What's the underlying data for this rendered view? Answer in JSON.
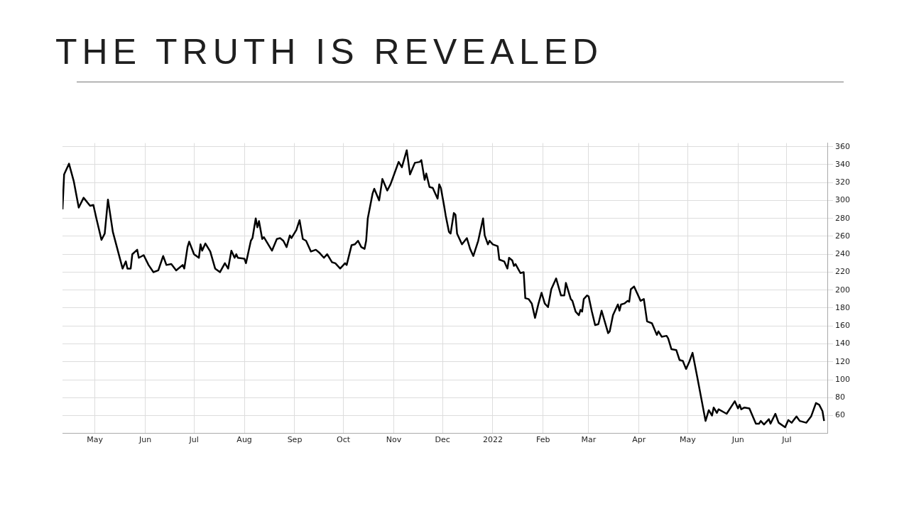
{
  "chart_data": {
    "type": "line",
    "title": "THE TRUTH IS REVEALED",
    "color": "#000000",
    "grid": true,
    "xlim": [
      "2021-04-11",
      "2022-07-26"
    ],
    "xticks": [
      {
        "value": "2021-05-01",
        "label": "May"
      },
      {
        "value": "2021-06-01",
        "label": "Jun"
      },
      {
        "value": "2021-07-01",
        "label": "Jul"
      },
      {
        "value": "2021-08-01",
        "label": "Aug"
      },
      {
        "value": "2021-09-01",
        "label": "Sep"
      },
      {
        "value": "2021-10-01",
        "label": "Oct"
      },
      {
        "value": "2021-11-01",
        "label": "Nov"
      },
      {
        "value": "2021-12-01",
        "label": "Dec"
      },
      {
        "value": "2022-01-01",
        "label": "2022"
      },
      {
        "value": "2022-02-01",
        "label": "Feb"
      },
      {
        "value": "2022-03-01",
        "label": "Mar"
      },
      {
        "value": "2022-04-01",
        "label": "Apr"
      },
      {
        "value": "2022-05-01",
        "label": "May"
      },
      {
        "value": "2022-06-01",
        "label": "Jun"
      },
      {
        "value": "2022-07-01",
        "label": "Jul"
      }
    ],
    "ylim": [
      40,
      364
    ],
    "yticks": [
      60,
      80,
      100,
      120,
      140,
      160,
      180,
      200,
      220,
      240,
      260,
      280,
      300,
      320,
      340,
      360
    ],
    "x": [
      "2021-04-11",
      "2021-04-12",
      "2021-04-15",
      "2021-04-18",
      "2021-04-21",
      "2021-04-24",
      "2021-04-28",
      "2021-04-30",
      "2021-05-02",
      "2021-05-05",
      "2021-05-07",
      "2021-05-09",
      "2021-05-12",
      "2021-05-18",
      "2021-05-20",
      "2021-05-21",
      "2021-05-23",
      "2021-05-24",
      "2021-05-27",
      "2021-05-28",
      "2021-05-31",
      "2021-06-03",
      "2021-06-06",
      "2021-06-09",
      "2021-06-12",
      "2021-06-14",
      "2021-06-17",
      "2021-06-20",
      "2021-06-24",
      "2021-06-25",
      "2021-06-27",
      "2021-06-28",
      "2021-07-01",
      "2021-07-04",
      "2021-07-05",
      "2021-07-06",
      "2021-07-08",
      "2021-07-11",
      "2021-07-14",
      "2021-07-17",
      "2021-07-20",
      "2021-07-22",
      "2021-07-24",
      "2021-07-26",
      "2021-07-27",
      "2021-07-28",
      "2021-08-01",
      "2021-08-02",
      "2021-08-05",
      "2021-08-06",
      "2021-08-08",
      "2021-08-09",
      "2021-08-10",
      "2021-08-12",
      "2021-08-13",
      "2021-08-18",
      "2021-08-21",
      "2021-08-23",
      "2021-08-25",
      "2021-08-27",
      "2021-08-29",
      "2021-08-30",
      "2021-09-02",
      "2021-09-04",
      "2021-09-06",
      "2021-09-08",
      "2021-09-11",
      "2021-09-14",
      "2021-09-16",
      "2021-09-19",
      "2021-09-21",
      "2021-09-24",
      "2021-09-26",
      "2021-09-29",
      "2021-10-02",
      "2021-10-03",
      "2021-10-06",
      "2021-10-08",
      "2021-10-10",
      "2021-10-12",
      "2021-10-14",
      "2021-10-15",
      "2021-10-16",
      "2021-10-19",
      "2021-10-20",
      "2021-10-23",
      "2021-10-25",
      "2021-10-28",
      "2021-10-30",
      "2021-11-02",
      "2021-11-04",
      "2021-11-06",
      "2021-11-09",
      "2021-11-11",
      "2021-11-14",
      "2021-11-17",
      "2021-11-18",
      "2021-11-20",
      "2021-11-21",
      "2021-11-23",
      "2021-11-25",
      "2021-11-28",
      "2021-11-29",
      "2021-11-30",
      "2021-12-02",
      "2021-12-03",
      "2021-12-05",
      "2021-12-06",
      "2021-12-08",
      "2021-12-09",
      "2021-12-10",
      "2021-12-13",
      "2021-12-16",
      "2021-12-18",
      "2021-12-20",
      "2021-12-23",
      "2021-12-26",
      "2021-12-27",
      "2021-12-29",
      "2021-12-30",
      "2022-01-01",
      "2022-01-04",
      "2022-01-05",
      "2022-01-08",
      "2022-01-10",
      "2022-01-11",
      "2022-01-13",
      "2022-01-14",
      "2022-01-15",
      "2022-01-18",
      "2022-01-20",
      "2022-01-21",
      "2022-01-23",
      "2022-01-25",
      "2022-01-27",
      "2022-01-29",
      "2022-01-31",
      "2022-02-02",
      "2022-02-04",
      "2022-02-06",
      "2022-02-09",
      "2022-02-12",
      "2022-02-14",
      "2022-02-15",
      "2022-02-18",
      "2022-02-19",
      "2022-02-21",
      "2022-02-23",
      "2022-02-24",
      "2022-02-25",
      "2022-02-26",
      "2022-02-28",
      "2022-03-01",
      "2022-03-03",
      "2022-03-05",
      "2022-03-07",
      "2022-03-09",
      "2022-03-13",
      "2022-03-14",
      "2022-03-16",
      "2022-03-19",
      "2022-03-20",
      "2022-03-21",
      "2022-03-23",
      "2022-03-25",
      "2022-03-26",
      "2022-03-27",
      "2022-03-29",
      "2022-03-31",
      "2022-04-02",
      "2022-04-04",
      "2022-04-06",
      "2022-04-09",
      "2022-04-12",
      "2022-04-13",
      "2022-04-15",
      "2022-04-18",
      "2022-04-19",
      "2022-04-21",
      "2022-04-24",
      "2022-04-26",
      "2022-04-28",
      "2022-04-30",
      "2022-05-02",
      "2022-05-04",
      "2022-05-07",
      "2022-05-12",
      "2022-05-14",
      "2022-05-16",
      "2022-05-17",
      "2022-05-19",
      "2022-05-20",
      "2022-05-23",
      "2022-05-25",
      "2022-05-30",
      "2022-06-01",
      "2022-06-02",
      "2022-06-03",
      "2022-06-05",
      "2022-06-08",
      "2022-06-12",
      "2022-06-14",
      "2022-06-15",
      "2022-06-17",
      "2022-06-20",
      "2022-06-21",
      "2022-06-24",
      "2022-06-26",
      "2022-06-30",
      "2022-07-02",
      "2022-07-04",
      "2022-07-07",
      "2022-07-09",
      "2022-07-13",
      "2022-07-16",
      "2022-07-19",
      "2022-07-21",
      "2022-07-23",
      "2022-07-24"
    ],
    "values": [
      290,
      329,
      341,
      321,
      292,
      303,
      294,
      295,
      279,
      256,
      263,
      301,
      265,
      224,
      232,
      224,
      224,
      240,
      245,
      236,
      239,
      228,
      220,
      222,
      238,
      228,
      229,
      222,
      228,
      224,
      248,
      254,
      240,
      236,
      251,
      244,
      252,
      243,
      224,
      220,
      230,
      224,
      244,
      236,
      240,
      236,
      235,
      230,
      255,
      258,
      280,
      270,
      277,
      257,
      259,
      244,
      257,
      258,
      255,
      248,
      261,
      258,
      267,
      278,
      257,
      255,
      243,
      245,
      242,
      236,
      240,
      231,
      230,
      224,
      230,
      228,
      250,
      251,
      255,
      248,
      246,
      255,
      280,
      308,
      313,
      300,
      324,
      311,
      318,
      333,
      343,
      337,
      356,
      329,
      342,
      343,
      345,
      323,
      330,
      315,
      314,
      302,
      318,
      314,
      294,
      283,
      265,
      263,
      286,
      284,
      263,
      251,
      258,
      246,
      238,
      255,
      280,
      261,
      251,
      255,
      251,
      249,
      234,
      232,
      224,
      236,
      233,
      227,
      229,
      219,
      220,
      191,
      190,
      185,
      169,
      184,
      197,
      185,
      181,
      201,
      213,
      194,
      194,
      208,
      190,
      188,
      176,
      172,
      178,
      176,
      190,
      194,
      193,
      176,
      161,
      162,
      177,
      152,
      154,
      172,
      184,
      177,
      184,
      185,
      188,
      187,
      201,
      204,
      196,
      188,
      190,
      165,
      163,
      150,
      154,
      148,
      149,
      146,
      134,
      133,
      122,
      121,
      112,
      120,
      130,
      102,
      54,
      66,
      60,
      69,
      63,
      67,
      64,
      62,
      76,
      68,
      72,
      67,
      69,
      68,
      51,
      51,
      54,
      50,
      56,
      51,
      62,
      52,
      47,
      55,
      52,
      59,
      54,
      52,
      59,
      74,
      72,
      65,
      54
    ]
  }
}
